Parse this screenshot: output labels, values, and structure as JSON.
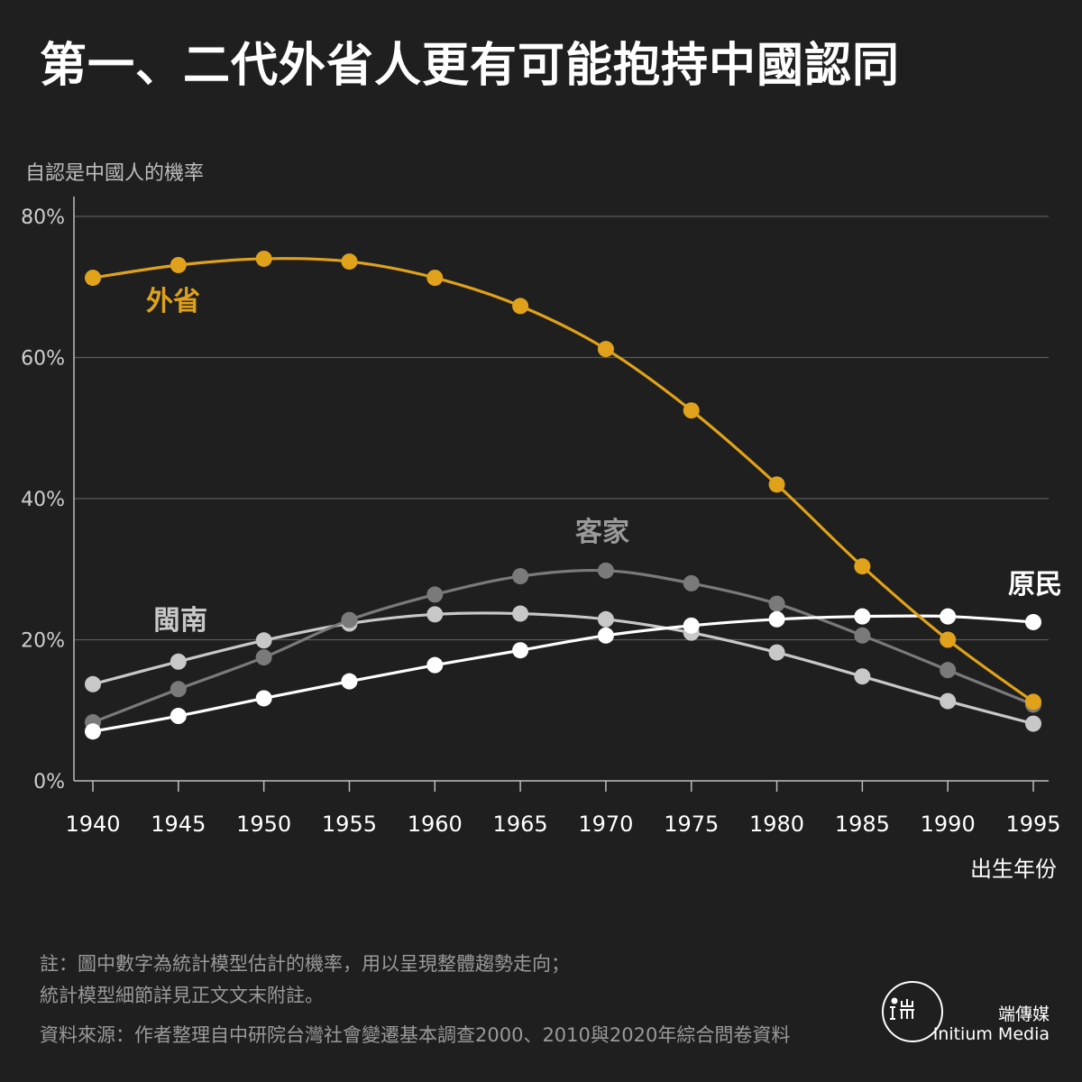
{
  "title": "第一、二代外省人更有可能抱持中國認同",
  "chart_data": {
    "type": "line",
    "ylabel": "自認是中國人的機率",
    "xlabel": "出生年份",
    "x": [
      1940,
      1945,
      1950,
      1955,
      1960,
      1965,
      1970,
      1975,
      1980,
      1985,
      1990,
      1995
    ],
    "xticks": [
      "1940",
      "1945",
      "1950",
      "1955",
      "1960",
      "1965",
      "1970",
      "1975",
      "1980",
      "1985",
      "1990",
      "1995"
    ],
    "ylim": [
      0,
      80
    ],
    "yticks": [
      "0%",
      "20%",
      "40%",
      "60%",
      "80%"
    ],
    "ytick_values": [
      0,
      20,
      40,
      60,
      80
    ],
    "grid": true,
    "series": [
      {
        "name": "閩南",
        "color": "#c8c8c8",
        "label_color": "#c8c8c8",
        "values": [
          13.7,
          16.9,
          19.9,
          22.3,
          23.6,
          23.7,
          22.9,
          21.0,
          18.2,
          14.8,
          11.3,
          8.1
        ]
      },
      {
        "name": "客家",
        "color": "#7a7a7a",
        "label_color": "#9a9a9a",
        "values": [
          8.3,
          13.0,
          17.5,
          22.8,
          26.4,
          29.0,
          29.8,
          28.0,
          25.1,
          20.6,
          15.7,
          10.8
        ]
      },
      {
        "name": "原民",
        "color": "#ffffff",
        "label_color": "#ffffff",
        "values": [
          7.0,
          9.2,
          11.7,
          14.1,
          16.4,
          18.5,
          20.6,
          22.0,
          22.9,
          23.3,
          23.3,
          22.5
        ]
      },
      {
        "name": "外省",
        "color": "#e0a21a",
        "label_color": "#e0a21a",
        "values": [
          71.3,
          73.1,
          74.0,
          73.6,
          71.3,
          67.3,
          61.2,
          52.5,
          42.0,
          30.4,
          20.0,
          11.2
        ]
      }
    ]
  },
  "notes": {
    "line1": "註：圖中數字為統計模型估計的機率，用以呈現整體趨勢走向；",
    "line2": "統計模型細節詳見正文文末附註。",
    "source": "資料來源：作者整理自中研院台灣社會變遷基本調查2000、2010與2020年綜合問卷資料"
  },
  "brand": {
    "cn": "端傳媒",
    "en": "Initium Media",
    "logo_icon": "initium-logo-icon"
  }
}
